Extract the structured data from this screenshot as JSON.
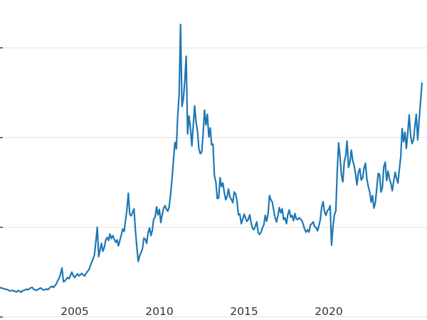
{
  "chart_data": {
    "type": "line",
    "title": "",
    "xlabel": "",
    "ylabel": "",
    "x_start": 2000.583,
    "x_step_years": 0.0833333,
    "xlim": [
      2000.59,
      2025.8
    ],
    "ylim": [
      -0.5,
      53.0
    ],
    "xticks": [
      2005,
      2010,
      2015,
      2020
    ],
    "xtick_labels": [
      "2005",
      "2010",
      "2015",
      "2020"
    ],
    "gridline_values": [
      0,
      15,
      30,
      45
    ],
    "grid": "horizontal-only",
    "legend": "none",
    "line_color": "#1f77b4",
    "grid_color": "#e2e2e2",
    "tick_color": "#333333",
    "background": "#ffffff",
    "values": [
      4.95,
      4.85,
      4.8,
      4.7,
      4.65,
      4.6,
      4.5,
      4.35,
      4.4,
      4.45,
      4.35,
      4.25,
      4.2,
      4.45,
      4.3,
      4.15,
      4.4,
      4.45,
      4.55,
      4.65,
      4.55,
      4.75,
      4.9,
      4.95,
      4.6,
      4.55,
      4.45,
      4.6,
      4.75,
      4.85,
      4.65,
      4.5,
      4.6,
      4.7,
      4.55,
      4.8,
      5.0,
      5.15,
      4.95,
      5.25,
      5.55,
      6.1,
      6.5,
      7.2,
      8.2,
      5.9,
      6.0,
      6.35,
      6.6,
      6.4,
      6.95,
      7.5,
      6.9,
      6.6,
      6.95,
      7.2,
      6.9,
      7.05,
      7.3,
      7.05,
      6.85,
      7.25,
      7.6,
      7.9,
      8.5,
      9.15,
      9.7,
      10.4,
      12.6,
      15.0,
      10.1,
      11.25,
      12.3,
      11.0,
      11.65,
      12.9,
      13.3,
      12.8,
      13.9,
      13.1,
      13.6,
      13.0,
      12.5,
      12.9,
      11.9,
      12.8,
      13.7,
      14.7,
      14.3,
      16.2,
      17.9,
      20.7,
      17.2,
      16.9,
      17.5,
      18.1,
      14.6,
      11.8,
      9.3,
      10.2,
      10.8,
      11.4,
      13.2,
      13.0,
      12.3,
      14.1,
      14.9,
      13.6,
      14.5,
      16.4,
      16.7,
      18.4,
      17.1,
      18.0,
      15.8,
      17.1,
      18.2,
      18.6,
      18.0,
      17.7,
      18.5,
      20.6,
      23.2,
      26.3,
      29.2,
      28.1,
      33.6,
      37.2,
      48.9,
      35.2,
      36.5,
      39.6,
      43.6,
      30.6,
      33.6,
      31.6,
      28.6,
      32.1,
      35.3,
      32.6,
      31.1,
      28.1,
      27.3,
      27.6,
      30.6,
      34.6,
      32.1,
      33.9,
      30.1,
      31.6,
      28.8,
      28.9,
      23.6,
      22.6,
      19.8,
      19.9,
      23.3,
      21.8,
      22.4,
      20.8,
      19.6,
      20.2,
      21.4,
      20.0,
      19.7,
      19.1,
      20.9,
      20.6,
      19.4,
      17.1,
      17.2,
      15.6,
      16.3,
      17.2,
      16.6,
      16.0,
      16.3,
      17.1,
      15.7,
      14.8,
      14.6,
      15.2,
      15.9,
      14.1,
      13.8,
      14.2,
      14.9,
      15.4,
      17.0,
      16.0,
      17.3,
      20.3,
      19.6,
      19.2,
      17.8,
      16.6,
      15.9,
      17.0,
      18.3,
      17.4,
      18.1,
      16.3,
      16.6,
      15.6,
      17.1,
      17.9,
      16.7,
      17.0,
      16.1,
      17.3,
      16.4,
      16.3,
      16.6,
      16.4,
      16.1,
      15.4,
      14.6,
      14.2,
      14.6,
      14.2,
      15.4,
      15.6,
      15.9,
      15.1,
      15.0,
      14.4,
      15.2,
      16.3,
      18.4,
      19.3,
      17.6,
      17.0,
      17.8,
      18.0,
      18.6,
      12.0,
      15.1,
      17.1,
      17.8,
      24.4,
      29.1,
      26.8,
      23.7,
      22.6,
      26.0,
      27.0,
      29.4,
      25.0,
      25.9,
      27.9,
      26.1,
      25.3,
      23.9,
      22.1,
      24.2,
      24.8,
      22.9,
      23.3,
      24.9,
      25.7,
      23.1,
      21.8,
      20.9,
      19.2,
      20.3,
      18.2,
      19.1,
      21.5,
      24.0,
      23.8,
      20.9,
      21.6,
      25.1,
      25.9,
      22.8,
      24.4,
      23.1,
      22.4,
      21.1,
      22.7,
      24.2,
      23.2,
      22.4,
      24.6,
      26.8,
      31.5,
      29.3,
      30.9,
      28.2,
      30.8,
      33.8,
      30.3,
      29.0,
      29.6,
      31.8,
      33.9,
      29.6,
      32.9,
      36.0,
      39.1
    ]
  }
}
